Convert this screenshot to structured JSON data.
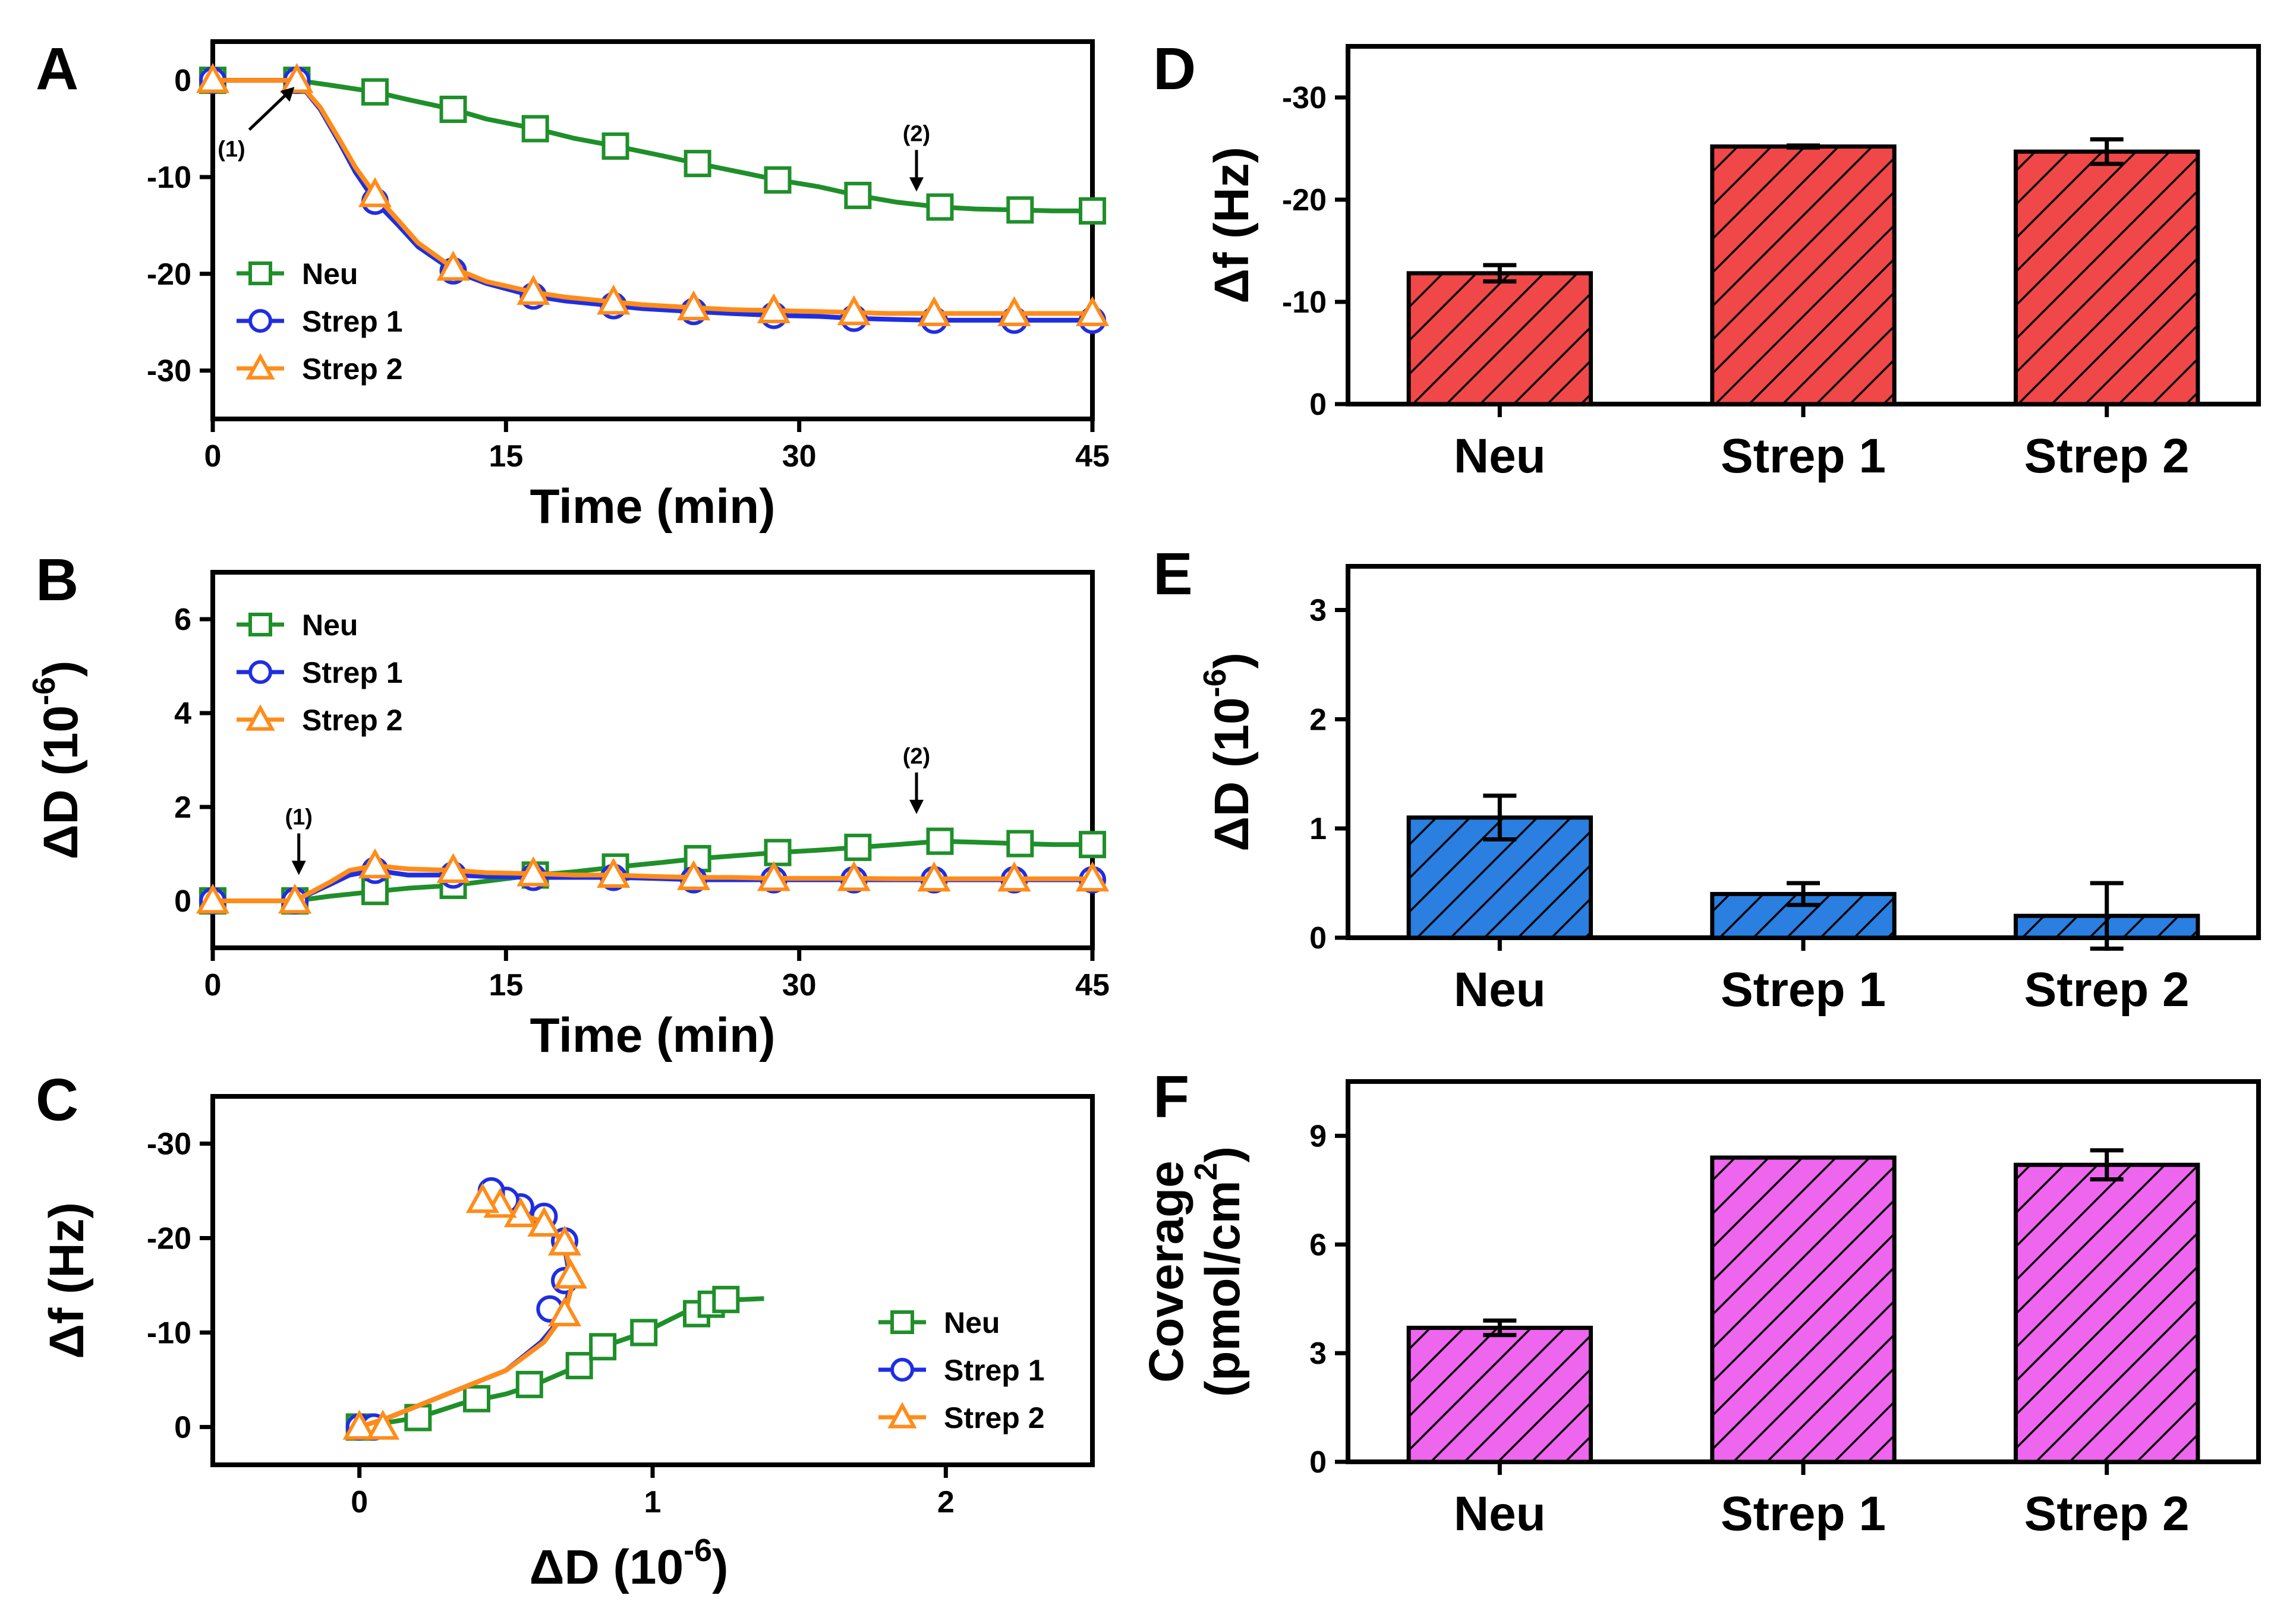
{
  "colors": {
    "neu": "#1f8f2a",
    "strep1": "#1f2ee0",
    "strep2": "#ff8c1a",
    "bar_f": "#f04848",
    "bar_d": "#2a7fe0",
    "bar_cov": "#ee66ee"
  },
  "markers": {
    "neu": "square",
    "strep1": "circle",
    "strep2": "triangle"
  },
  "chart_data": [
    {
      "id": "A",
      "type": "line",
      "letter": "A",
      "xlabel": "Time (min)",
      "ylabel": "",
      "xlim": [
        0,
        45
      ],
      "ylim": [
        -35,
        4
      ],
      "xticks": [
        0,
        15,
        30,
        45
      ],
      "xtick_labels": [
        "0",
        "15",
        "30",
        "45"
      ],
      "yticks": [
        0,
        -10,
        -20,
        -30
      ],
      "ytick_labels": [
        "0",
        "-10",
        "-20",
        "-30"
      ],
      "legend_position": "bottom-left",
      "annotations": [
        {
          "text": "(1)",
          "x": 4.3,
          "y": -0.5,
          "direction": "from-lower-left"
        },
        {
          "text": "(2)",
          "x": 36,
          "y": -11.5,
          "direction": "down"
        }
      ],
      "series": [
        {
          "name": "Neu",
          "key": "neu",
          "x": [
            0,
            2,
            4.3,
            6,
            8.3,
            10,
            12.3,
            14,
            16.5,
            18.5,
            20.6,
            23,
            24.8,
            27,
            28.9,
            31,
            33,
            35,
            37.2,
            39,
            41,
            43,
            45
          ],
          "y": [
            0,
            0,
            0,
            -0.5,
            -1.2,
            -2,
            -3,
            -4,
            -5,
            -6,
            -6.8,
            -7.8,
            -8.6,
            -9.5,
            -10.3,
            -11,
            -11.9,
            -12.6,
            -13.1,
            -13.3,
            -13.4,
            -13.5,
            -13.5
          ],
          "marker_x": [
            0,
            4.3,
            8.3,
            12.3,
            16.5,
            20.6,
            24.8,
            28.9,
            33,
            37.2,
            41.3,
            45
          ],
          "marker_y": [
            0,
            0,
            -1.2,
            -3,
            -5,
            -6.8,
            -8.6,
            -10.3,
            -11.9,
            -13.1,
            -13.4,
            -13.5
          ]
        },
        {
          "name": "Strep 1",
          "key": "strep1",
          "x": [
            0,
            2,
            4.3,
            5.5,
            6.5,
            7.3,
            8.3,
            9.5,
            10.5,
            12.3,
            14,
            16.4,
            18,
            20.5,
            22,
            24.6,
            26.5,
            28.7,
            31,
            32.8,
            34.5,
            36.9,
            39,
            41,
            43,
            45
          ],
          "y": [
            0,
            0,
            0,
            -3,
            -6.5,
            -9.5,
            -12.5,
            -15,
            -17.2,
            -19.7,
            -21,
            -22.3,
            -22.8,
            -23.3,
            -23.6,
            -23.9,
            -24.1,
            -24.3,
            -24.4,
            -24.6,
            -24.7,
            -24.8,
            -24.8,
            -24.8,
            -24.8,
            -24.8
          ],
          "marker_x": [
            0,
            4.3,
            8.3,
            12.3,
            16.4,
            20.5,
            24.6,
            28.7,
            32.8,
            36.9,
            41,
            45
          ],
          "marker_y": [
            0,
            0,
            -12.5,
            -19.7,
            -22.3,
            -23.3,
            -23.9,
            -24.3,
            -24.6,
            -24.8,
            -24.8,
            -24.8
          ]
        },
        {
          "name": "Strep 2",
          "key": "strep2",
          "x": [
            0,
            2,
            4.3,
            5.5,
            6.5,
            7.3,
            8.3,
            9.5,
            10.5,
            12.3,
            14,
            16.4,
            18,
            20.5,
            22,
            24.6,
            26.5,
            28.7,
            31,
            32.8,
            34.5,
            36.9,
            39,
            41,
            43,
            45
          ],
          "y": [
            0,
            0,
            0,
            -2.8,
            -6.2,
            -9,
            -11.8,
            -14.5,
            -16.8,
            -19.4,
            -20.8,
            -21.9,
            -22.4,
            -22.9,
            -23.2,
            -23.5,
            -23.7,
            -23.8,
            -23.9,
            -24,
            -24.1,
            -24.1,
            -24.1,
            -24.1,
            -24.1,
            -24.1
          ],
          "marker_x": [
            0,
            4.3,
            8.3,
            12.3,
            16.4,
            20.5,
            24.6,
            28.7,
            32.8,
            36.9,
            41,
            45
          ],
          "marker_y": [
            0,
            0,
            -11.8,
            -19.4,
            -21.9,
            -22.9,
            -23.5,
            -23.8,
            -24,
            -24.1,
            -24.1,
            -24.1
          ]
        }
      ]
    },
    {
      "id": "B",
      "type": "line",
      "letter": "B",
      "xlabel": "Time (min)",
      "ylabel": "ΔD (10",
      "ylabel_sup": "-6",
      "ylabel_end": ")",
      "xlim": [
        0,
        45
      ],
      "ylim": [
        -1,
        7
      ],
      "xticks": [
        0,
        15,
        30,
        45
      ],
      "xtick_labels": [
        "0",
        "15",
        "30",
        "45"
      ],
      "yticks": [
        0,
        2,
        4,
        6
      ],
      "ytick_labels": [
        "0",
        "2",
        "4",
        "6"
      ],
      "legend_position": "top-left",
      "annotations": [
        {
          "text": "(1)",
          "x": 4.4,
          "y": 0.55,
          "direction": "down"
        },
        {
          "text": "(2)",
          "x": 36,
          "y": 1.85,
          "direction": "down"
        }
      ],
      "series": [
        {
          "name": "Neu",
          "key": "neu",
          "x": [
            0,
            2,
            4.2,
            6,
            8.3,
            10,
            12.3,
            14,
            16.5,
            18.5,
            20.6,
            23,
            24.8,
            27,
            28.9,
            31,
            33,
            35,
            37.2,
            39,
            41.3,
            43,
            45
          ],
          "y": [
            0,
            0,
            0,
            0.1,
            0.2,
            0.27,
            0.33,
            0.42,
            0.55,
            0.62,
            0.72,
            0.82,
            0.9,
            0.97,
            1.03,
            1.08,
            1.14,
            1.2,
            1.27,
            1.25,
            1.22,
            1.2,
            1.2
          ],
          "marker_x": [
            0,
            4.2,
            8.3,
            12.3,
            16.5,
            20.6,
            24.8,
            28.9,
            33,
            37.2,
            41.3,
            45
          ],
          "marker_y": [
            0,
            0,
            0.2,
            0.33,
            0.55,
            0.72,
            0.9,
            1.03,
            1.14,
            1.27,
            1.22,
            1.2
          ]
        },
        {
          "name": "Strep 1",
          "key": "strep1",
          "x": [
            0,
            2,
            4.2,
            6,
            7,
            8.3,
            10,
            12.3,
            14,
            16.4,
            18.5,
            20.5,
            22.5,
            24.6,
            26.5,
            28.7,
            31,
            32.8,
            35,
            36.9,
            39,
            41,
            43,
            45
          ],
          "y": [
            0,
            0,
            0,
            0.35,
            0.55,
            0.65,
            0.55,
            0.55,
            0.52,
            0.5,
            0.5,
            0.5,
            0.48,
            0.45,
            0.45,
            0.45,
            0.45,
            0.45,
            0.45,
            0.45,
            0.45,
            0.45,
            0.45,
            0.45
          ],
          "marker_x": [
            0,
            4.2,
            8.3,
            12.3,
            16.4,
            20.5,
            24.6,
            28.7,
            32.8,
            36.9,
            41,
            45
          ],
          "marker_y": [
            0,
            0,
            0.65,
            0.55,
            0.5,
            0.5,
            0.45,
            0.45,
            0.45,
            0.45,
            0.45,
            0.45
          ]
        },
        {
          "name": "Strep 2",
          "key": "strep2",
          "x": [
            0,
            2,
            4.2,
            6,
            7,
            8.3,
            10,
            12.3,
            14,
            16.4,
            18.5,
            20.5,
            22.5,
            24.6,
            26.5,
            28.7,
            31,
            32.8,
            35,
            36.9,
            39,
            41,
            43,
            45
          ],
          "y": [
            0,
            0,
            0,
            0.4,
            0.65,
            0.75,
            0.68,
            0.65,
            0.6,
            0.58,
            0.55,
            0.55,
            0.52,
            0.5,
            0.5,
            0.48,
            0.48,
            0.48,
            0.47,
            0.47,
            0.47,
            0.47,
            0.47,
            0.47
          ],
          "marker_x": [
            0,
            4.2,
            8.3,
            12.3,
            16.4,
            20.5,
            24.6,
            28.7,
            32.8,
            36.9,
            41,
            45
          ],
          "marker_y": [
            0,
            0,
            0.75,
            0.65,
            0.58,
            0.55,
            0.5,
            0.48,
            0.48,
            0.47,
            0.47,
            0.47
          ]
        }
      ]
    },
    {
      "id": "C",
      "type": "line",
      "letter": "C",
      "xlabel": "ΔD (10",
      "xlabel_sup": "-6",
      "xlabel_end": ")",
      "ylabel": "Δf (Hz)",
      "xlim": [
        -0.5,
        2.5
      ],
      "ylim": [
        4,
        -35
      ],
      "xticks": [
        0,
        1,
        2
      ],
      "xtick_labels": [
        "0",
        "1",
        "2"
      ],
      "yticks": [
        0,
        -10,
        -20,
        -30
      ],
      "ytick_labels": [
        "0",
        "-10",
        "-20",
        "-30"
      ],
      "legend_position": "bottom-right",
      "series": [
        {
          "name": "Neu",
          "key": "neu",
          "x": [
            0,
            0.1,
            0.2,
            0.35,
            0.5,
            0.6,
            0.75,
            0.83,
            0.97,
            1.1,
            1.18,
            1.23,
            1.38
          ],
          "y": [
            0,
            -0.5,
            -1,
            -2.5,
            -3.5,
            -4.5,
            -6.5,
            -8.5,
            -10,
            -12,
            -13,
            -13.4,
            -13.6
          ],
          "marker_x": [
            0,
            0.2,
            0.4,
            0.58,
            0.75,
            0.83,
            0.97,
            1.15,
            1.2,
            1.25
          ],
          "marker_y": [
            0,
            -1,
            -3,
            -4.5,
            -6.5,
            -8.5,
            -10,
            -12,
            -13,
            -13.5
          ]
        },
        {
          "name": "Strep 1",
          "key": "strep1",
          "x": [
            0,
            0.1,
            0.3,
            0.5,
            0.62,
            0.7,
            0.72,
            0.7,
            0.65,
            0.55,
            0.47,
            0.42,
            0.45
          ],
          "y": [
            0,
            -1,
            -3.5,
            -6,
            -9,
            -12,
            -15.5,
            -19,
            -21.5,
            -22.8,
            -23.5,
            -24.5,
            -25
          ],
          "marker_x": [
            0,
            0.05,
            0.65,
            0.7,
            0.7,
            0.63,
            0.55,
            0.5,
            0.45,
            0.45
          ],
          "marker_y": [
            0,
            0,
            -12.5,
            -15.5,
            -19.7,
            -22.3,
            -23.3,
            -24,
            -24.5,
            -25
          ]
        },
        {
          "name": "Strep 2",
          "key": "strep2",
          "x": [
            0,
            0.1,
            0.3,
            0.5,
            0.63,
            0.7,
            0.73,
            0.7,
            0.65,
            0.55,
            0.45,
            0.4
          ],
          "y": [
            0,
            -1,
            -3.5,
            -6,
            -9,
            -12,
            -15.5,
            -19,
            -21.5,
            -22.5,
            -23.2,
            -24
          ],
          "marker_x": [
            0,
            0.08,
            0.7,
            0.72,
            0.7,
            0.63,
            0.55,
            0.48,
            0.42
          ],
          "marker_y": [
            0,
            0,
            -12,
            -16,
            -19.5,
            -21.5,
            -22.5,
            -23.5,
            -24
          ]
        }
      ]
    },
    {
      "id": "D",
      "type": "bar",
      "letter": "D",
      "ylabel": "Δf (Hz)",
      "categories": [
        "Neu",
        "Strep 1",
        "Strep 2"
      ],
      "values": [
        -12.8,
        -25.2,
        -24.7
      ],
      "errors": [
        0.8,
        0.1,
        1.2
      ],
      "ylim": [
        0,
        -35
      ],
      "yticks": [
        0,
        -10,
        -20,
        -30
      ],
      "ytick_labels": [
        "0",
        "-10",
        "-20",
        "-30"
      ],
      "fill_color_key": "bar_f"
    },
    {
      "id": "E",
      "type": "bar",
      "letter": "E",
      "ylabel": "ΔD (10",
      "ylabel_sup": "-6",
      "ylabel_end": ")",
      "categories": [
        "Neu",
        "Strep 1",
        "Strep 2"
      ],
      "values": [
        1.1,
        0.4,
        0.2
      ],
      "errors": [
        0.2,
        0.1,
        0.3
      ],
      "ylim": [
        0,
        3.4
      ],
      "yticks": [
        0,
        1,
        2,
        3
      ],
      "ytick_labels": [
        "0",
        "1",
        "2",
        "3"
      ],
      "fill_color_key": "bar_d"
    },
    {
      "id": "F",
      "type": "bar",
      "letter": "F",
      "ylabel_line1": "Coverage",
      "ylabel_line2": "(pmol/cm",
      "ylabel_line2_sup": "2",
      "ylabel_line2_end": ")",
      "categories": [
        "Neu",
        "Strep 1",
        "Strep 2"
      ],
      "values": [
        3.7,
        8.4,
        8.2
      ],
      "errors": [
        0.2,
        0.0,
        0.4
      ],
      "ylim": [
        0,
        10.5
      ],
      "yticks": [
        0,
        3,
        6,
        9
      ],
      "ytick_labels": [
        "0",
        "3",
        "6",
        "9"
      ],
      "fill_color_key": "bar_cov"
    }
  ]
}
